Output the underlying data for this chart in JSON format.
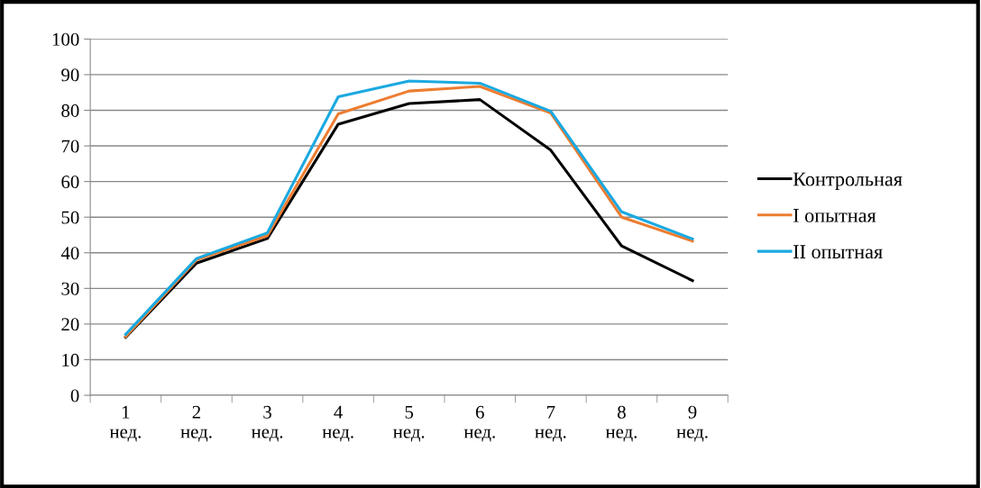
{
  "chart_data": {
    "type": "line",
    "categories": [
      "1\nнед.",
      "2\nнед.",
      "3\nнед.",
      "4\nнед.",
      "5\nнед.",
      "6\nнед.",
      "7\nнед.",
      "8\nнед.",
      "9\nнед."
    ],
    "series": [
      {
        "name": "Контрольная",
        "color": "#000000",
        "values": [
          16.3,
          37.1,
          44.0,
          76.1,
          81.9,
          83.0,
          68.8,
          41.9,
          32.2
        ]
      },
      {
        "name": "I опытная",
        "color": "#ed7d31",
        "values": [
          16.5,
          38.0,
          44.8,
          79.0,
          85.4,
          86.7,
          79.2,
          50.0,
          43.3
        ]
      },
      {
        "name": "II опытная",
        "color": "#1aa9e0",
        "values": [
          17.1,
          38.4,
          45.6,
          83.8,
          88.2,
          87.6,
          79.7,
          51.5,
          43.9
        ]
      }
    ],
    "ylim": [
      0,
      100
    ],
    "yticks": [
      0,
      10,
      20,
      30,
      40,
      50,
      60,
      70,
      80,
      90,
      100
    ],
    "grid": "y",
    "legend": "right",
    "marker": "none",
    "line_style": "solid"
  }
}
